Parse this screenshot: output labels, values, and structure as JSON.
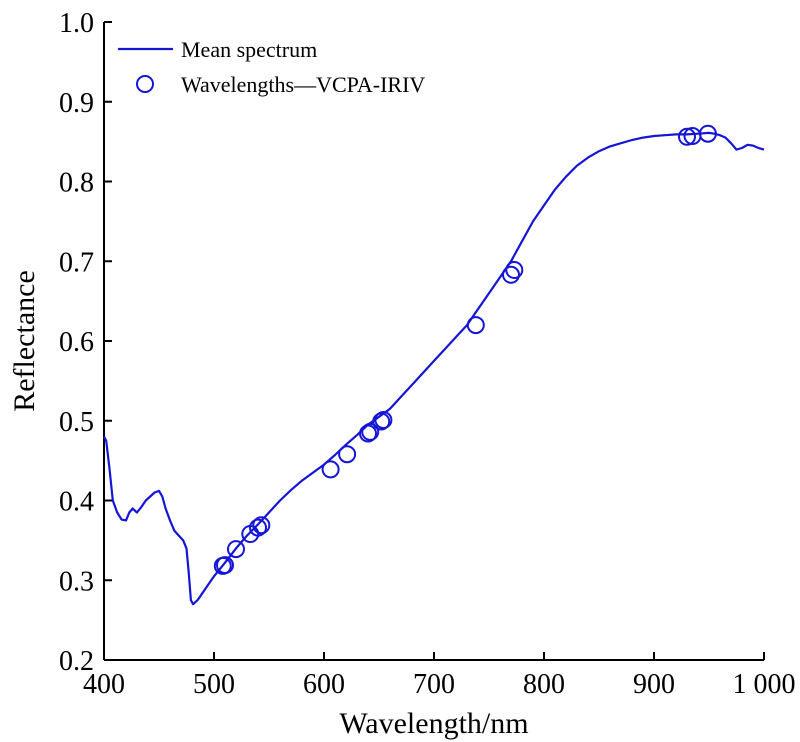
{
  "chart_data": {
    "type": "line",
    "xlabel": "Wavelength/nm",
    "ylabel": "Reflectance",
    "xlim": [
      400,
      1000
    ],
    "ylim": [
      0.2,
      1.0
    ],
    "x_ticks": [
      400,
      500,
      600,
      700,
      800,
      900,
      1000
    ],
    "x_tick_labels": [
      "400",
      "500",
      "600",
      "700",
      "800",
      "900",
      "1 000"
    ],
    "y_ticks": [
      0.2,
      0.3,
      0.4,
      0.5,
      0.6,
      0.7,
      0.8,
      0.9,
      1.0
    ],
    "y_tick_labels": [
      "0.2",
      "0.3",
      "0.4",
      "0.5",
      "0.6",
      "0.7",
      "0.8",
      "0.9",
      "1.0"
    ],
    "grid": false,
    "legend_position": "top-left",
    "line_color": "#1515d6",
    "series": [
      {
        "name": "Mean spectrum",
        "kind": "line",
        "x": [
          400,
          402,
          405,
          408,
          412,
          416,
          420,
          423,
          426,
          430,
          434,
          438,
          442,
          446,
          450,
          453,
          456,
          460,
          464,
          468,
          472,
          475,
          477,
          479,
          481,
          485,
          490,
          500,
          510,
          520,
          530,
          540,
          550,
          560,
          570,
          580,
          590,
          600,
          610,
          620,
          630,
          640,
          650,
          660,
          670,
          680,
          690,
          700,
          710,
          720,
          730,
          740,
          750,
          760,
          770,
          780,
          790,
          800,
          810,
          820,
          830,
          840,
          850,
          860,
          870,
          880,
          890,
          900,
          910,
          920,
          930,
          940,
          950,
          955,
          960,
          965,
          970,
          975,
          980,
          985,
          990,
          995,
          1000
        ],
        "y": [
          0.48,
          0.475,
          0.44,
          0.4,
          0.385,
          0.376,
          0.375,
          0.385,
          0.39,
          0.385,
          0.392,
          0.4,
          0.405,
          0.41,
          0.412,
          0.405,
          0.39,
          0.375,
          0.362,
          0.356,
          0.35,
          0.34,
          0.31,
          0.275,
          0.27,
          0.275,
          0.285,
          0.305,
          0.322,
          0.34,
          0.356,
          0.37,
          0.385,
          0.4,
          0.413,
          0.425,
          0.435,
          0.445,
          0.457,
          0.47,
          0.482,
          0.495,
          0.505,
          0.515,
          0.53,
          0.545,
          0.56,
          0.575,
          0.59,
          0.605,
          0.62,
          0.64,
          0.66,
          0.68,
          0.7,
          0.725,
          0.75,
          0.77,
          0.79,
          0.806,
          0.82,
          0.83,
          0.838,
          0.844,
          0.848,
          0.852,
          0.855,
          0.857,
          0.858,
          0.859,
          0.859,
          0.86,
          0.861,
          0.86,
          0.858,
          0.855,
          0.848,
          0.84,
          0.842,
          0.846,
          0.845,
          0.842,
          0.84
        ]
      },
      {
        "name": "Wavelengths—VCPA-IRIV",
        "kind": "scatter",
        "marker": "open-circle",
        "x": [
          508,
          510,
          520,
          533,
          540,
          543,
          606,
          621,
          640,
          642,
          652,
          654,
          738,
          770,
          773,
          930,
          935,
          949
        ],
        "y": [
          0.318,
          0.319,
          0.339,
          0.358,
          0.366,
          0.369,
          0.439,
          0.458,
          0.484,
          0.486,
          0.499,
          0.501,
          0.62,
          0.683,
          0.689,
          0.856,
          0.857,
          0.86
        ]
      }
    ]
  }
}
